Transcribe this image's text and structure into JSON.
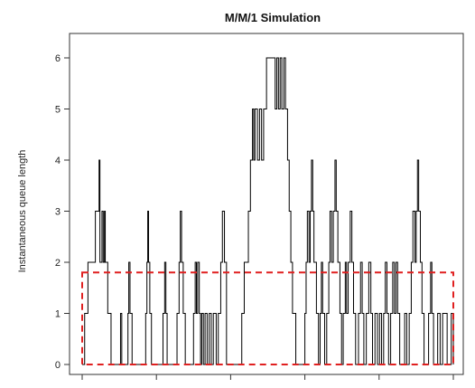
{
  "chart_data": {
    "type": "line",
    "title": "M/M/1 Simulation",
    "xlabel": "",
    "ylabel": "Instantaneous queue length",
    "ylim": [
      0,
      6
    ],
    "y_ticks": [
      0,
      1,
      2,
      3,
      4,
      5,
      6
    ],
    "x_tick_count": 6,
    "x_tick_labels_visible": false,
    "grid": false,
    "colors": {
      "queue_line": "#000000",
      "mean_box": "#e02020"
    },
    "series": [
      {
        "step": "post",
        "points": [
          [
            0,
            0
          ],
          [
            0.6,
            1
          ],
          [
            1.4,
            2
          ],
          [
            1.8,
            2
          ],
          [
            3.2,
            3
          ],
          [
            3.8,
            3
          ],
          [
            4.1,
            4
          ],
          [
            4.3,
            2
          ],
          [
            4.8,
            3
          ],
          [
            5.1,
            2
          ],
          [
            5.4,
            3
          ],
          [
            5.6,
            2
          ],
          [
            6.2,
            1
          ],
          [
            7.0,
            0
          ],
          [
            9.3,
            1
          ],
          [
            9.6,
            0
          ],
          [
            11.1,
            1
          ],
          [
            11.3,
            2
          ],
          [
            11.6,
            1
          ],
          [
            12.1,
            0
          ],
          [
            15.4,
            1
          ],
          [
            15.7,
            2
          ],
          [
            15.9,
            3
          ],
          [
            16.1,
            2
          ],
          [
            16.4,
            1
          ],
          [
            16.8,
            0
          ],
          [
            19.6,
            1
          ],
          [
            20.0,
            2
          ],
          [
            20.3,
            1
          ],
          [
            20.6,
            0
          ],
          [
            23.0,
            1
          ],
          [
            23.5,
            2
          ],
          [
            23.8,
            3
          ],
          [
            24.1,
            2
          ],
          [
            24.5,
            1
          ],
          [
            25.0,
            0
          ],
          [
            27.0,
            1
          ],
          [
            27.4,
            2
          ],
          [
            27.7,
            1
          ],
          [
            28.0,
            2
          ],
          [
            28.4,
            1
          ],
          [
            28.7,
            0
          ],
          [
            29.0,
            1
          ],
          [
            29.4,
            0
          ],
          [
            29.8,
            1
          ],
          [
            30.3,
            0
          ],
          [
            30.8,
            1
          ],
          [
            31.3,
            0
          ],
          [
            31.8,
            1
          ],
          [
            32.5,
            0
          ],
          [
            33.0,
            1
          ],
          [
            33.6,
            2
          ],
          [
            34.0,
            3
          ],
          [
            34.5,
            2
          ],
          [
            35.0,
            0
          ],
          [
            38.7,
            1
          ],
          [
            39.3,
            2
          ],
          [
            40.3,
            3
          ],
          [
            40.8,
            4
          ],
          [
            41.3,
            5
          ],
          [
            41.6,
            4
          ],
          [
            41.9,
            5
          ],
          [
            42.5,
            4
          ],
          [
            43.0,
            5
          ],
          [
            43.5,
            4
          ],
          [
            44.0,
            5
          ],
          [
            44.7,
            6
          ],
          [
            46.2,
            6
          ],
          [
            46.8,
            5
          ],
          [
            47.2,
            6
          ],
          [
            47.6,
            5
          ],
          [
            48.0,
            6
          ],
          [
            48.4,
            5
          ],
          [
            48.9,
            6
          ],
          [
            49.3,
            5
          ],
          [
            49.8,
            4
          ],
          [
            50.2,
            3
          ],
          [
            50.6,
            2
          ],
          [
            51.0,
            1
          ],
          [
            51.8,
            0
          ],
          [
            54.0,
            1
          ],
          [
            54.3,
            2
          ],
          [
            54.6,
            3
          ],
          [
            55.0,
            2
          ],
          [
            55.3,
            3
          ],
          [
            55.6,
            4
          ],
          [
            55.9,
            3
          ],
          [
            56.2,
            2
          ],
          [
            56.8,
            1
          ],
          [
            57.3,
            0
          ],
          [
            57.7,
            1
          ],
          [
            58.0,
            2
          ],
          [
            58.3,
            1
          ],
          [
            58.8,
            0
          ],
          [
            59.3,
            1
          ],
          [
            59.8,
            2
          ],
          [
            60.1,
            3
          ],
          [
            60.5,
            2
          ],
          [
            60.9,
            3
          ],
          [
            61.3,
            4
          ],
          [
            61.6,
            3
          ],
          [
            62.0,
            2
          ],
          [
            62.5,
            1
          ],
          [
            62.9,
            0
          ],
          [
            63.3,
            1
          ],
          [
            63.8,
            2
          ],
          [
            64.1,
            1
          ],
          [
            64.5,
            2
          ],
          [
            65.0,
            3
          ],
          [
            65.4,
            2
          ],
          [
            65.8,
            1
          ],
          [
            66.3,
            0
          ],
          [
            67.0,
            1
          ],
          [
            67.5,
            2
          ],
          [
            67.9,
            1
          ],
          [
            68.3,
            0
          ],
          [
            68.9,
            1
          ],
          [
            69.5,
            2
          ],
          [
            70.0,
            1
          ],
          [
            70.4,
            0
          ],
          [
            71.0,
            1
          ],
          [
            71.6,
            0
          ],
          [
            72.1,
            1
          ],
          [
            72.6,
            0
          ],
          [
            73.1,
            1
          ],
          [
            73.5,
            2
          ],
          [
            73.9,
            1
          ],
          [
            74.3,
            0
          ],
          [
            74.8,
            1
          ],
          [
            75.3,
            2
          ],
          [
            75.7,
            1
          ],
          [
            76.1,
            2
          ],
          [
            76.5,
            1
          ],
          [
            77.0,
            0
          ],
          [
            78.2,
            1
          ],
          [
            78.7,
            0
          ],
          [
            79.3,
            1
          ],
          [
            79.8,
            2
          ],
          [
            80.2,
            3
          ],
          [
            80.7,
            2
          ],
          [
            81.0,
            3
          ],
          [
            81.3,
            4
          ],
          [
            81.6,
            3
          ],
          [
            82.0,
            2
          ],
          [
            82.4,
            1
          ],
          [
            82.9,
            0
          ],
          [
            84.0,
            1
          ],
          [
            84.5,
            2
          ],
          [
            84.8,
            1
          ],
          [
            85.2,
            0
          ],
          [
            86.2,
            1
          ],
          [
            86.8,
            0
          ],
          [
            87.4,
            1
          ],
          [
            88.5,
            0
          ],
          [
            89.5,
            1
          ],
          [
            90.0,
            0
          ]
        ]
      }
    ],
    "mean_box": {
      "style": "dashed",
      "x": [
        0,
        90
      ],
      "y": [
        0,
        1.8
      ]
    }
  }
}
